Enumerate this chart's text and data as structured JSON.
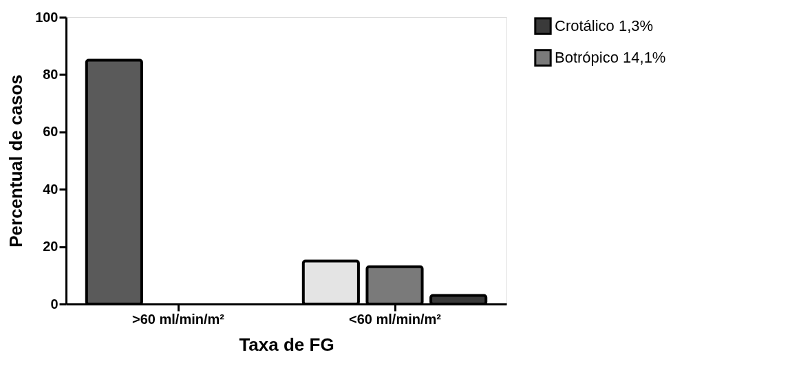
{
  "chart_data": {
    "type": "bar",
    "xlabel": "Taxa de FG",
    "ylabel": "Percentual de casos",
    "categories": [
      ">60 ml/min/m²",
      "<60 ml/min/m²"
    ],
    "series": [
      {
        "colors": [
          "#5a5a5a",
          "#e4e4e4"
        ],
        "values": [
          85,
          15
        ]
      },
      {
        "name": "Botrópico 14,1%",
        "color": "#7a7a7a",
        "values": [
          null,
          13
        ]
      },
      {
        "name": "Crotálico 1,3%",
        "color": "#3a3a3a",
        "values": [
          null,
          3
        ]
      }
    ],
    "ylim": [
      0,
      100
    ],
    "yticks": [
      0,
      20,
      40,
      60,
      80,
      100
    ],
    "grid": false,
    "legend": "top right"
  }
}
